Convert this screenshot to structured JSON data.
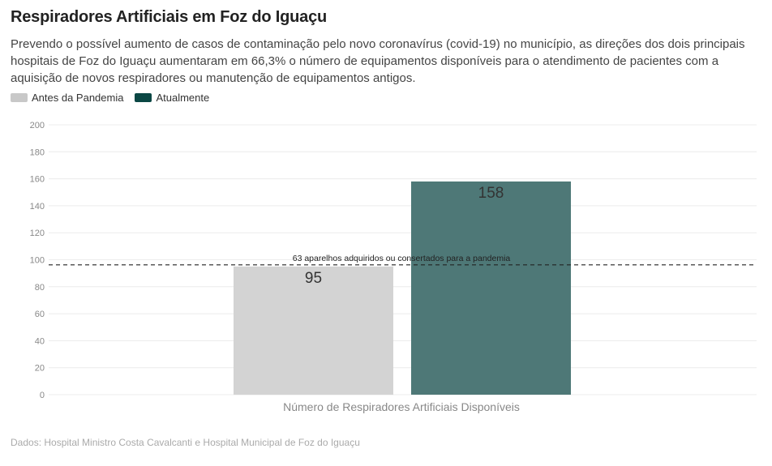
{
  "title": "Respiradores Artificiais em Foz do Iguaçu",
  "subtitle": "Prevendo o possível aumento de casos de contaminação pelo novo coronavírus (covid-19) no município, as direções dos dois principais hospitais de Foz do Iguaçu aumentaram em 66,3% o número de equipamentos disponíveis para o atendimento de pacientes com a aquisição de novos respiradores ou manutenção de equipamentos antigos.",
  "legend": [
    {
      "label": "Antes da Pandemia",
      "color": "#cccccc"
    },
    {
      "label": "Atualmente",
      "color": "#0b4744"
    }
  ],
  "source": "Dados: Hospital Ministro Costa Cavalcanti e Hospital Municipal de Foz do Iguaçu",
  "chart_data": {
    "type": "bar",
    "categories": [
      "Número de Respiradores Artificiais Disponíveis"
    ],
    "series": [
      {
        "name": "Antes da Pandemia",
        "values": [
          95
        ],
        "color": "#d3d3d3"
      },
      {
        "name": "Atualmente",
        "values": [
          158
        ],
        "color": "#4e7877"
      }
    ],
    "xlabel": "Número de Respiradores Artificiais Disponíveis",
    "ylabel": "",
    "ylim": [
      0,
      200
    ],
    "yticks": [
      0,
      20,
      40,
      60,
      80,
      100,
      120,
      140,
      160,
      180,
      200
    ],
    "grid": true,
    "reference_line": {
      "value": 95,
      "label": "63 aparelhos adquiridos ou consertados para a pandemia",
      "style": "dashed"
    }
  }
}
